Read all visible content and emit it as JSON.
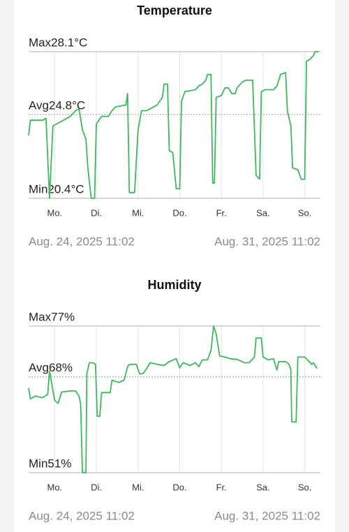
{
  "chart_data": [
    {
      "type": "line",
      "title": "Temperature",
      "color": "#3cb95a",
      "xlim": [
        0,
        168
      ],
      "ylim": [
        20.4,
        28.1
      ],
      "xticks": [
        {
          "value": 15,
          "label": "Mo."
        },
        {
          "value": 39,
          "label": "Di."
        },
        {
          "value": 63,
          "label": "Mi."
        },
        {
          "value": 87,
          "label": "Do."
        },
        {
          "value": 111,
          "label": "Fr."
        },
        {
          "value": 135,
          "label": "Sa."
        },
        {
          "value": 159,
          "label": "So."
        }
      ],
      "reference_lines": [
        {
          "value": 28.1,
          "label": "Max28.1°C"
        },
        {
          "value": 24.8,
          "label": "Avg24.8°C"
        },
        {
          "value": 20.4,
          "label": "Min20.4°C"
        }
      ],
      "start_label": "Aug. 24, 2025 11:02",
      "end_label": "Aug. 31, 2025 11:02",
      "x": [
        0,
        1,
        8,
        10,
        12,
        14,
        16,
        20,
        24,
        27,
        29,
        31,
        33,
        34,
        36,
        38,
        39,
        42,
        46,
        48,
        50,
        56,
        57,
        58,
        61,
        63,
        65,
        68,
        72,
        74,
        77,
        78,
        80,
        81,
        83,
        85,
        87,
        88,
        90,
        96,
        98,
        100,
        102,
        103,
        105,
        106,
        107,
        108,
        111,
        113,
        115,
        117,
        119,
        120,
        123,
        125,
        129,
        131,
        133,
        134,
        136,
        141,
        143,
        145,
        148,
        149,
        151,
        152,
        155,
        157,
        159,
        160,
        162,
        164,
        165,
        167
      ],
      "values": [
        23.7,
        24.5,
        24.5,
        24.6,
        20.4,
        24.2,
        24.3,
        24.5,
        24.7,
        25.0,
        25.1,
        24.0,
        23.5,
        22.1,
        20.4,
        20.4,
        24.3,
        24.7,
        24.7,
        25.0,
        25.2,
        25.3,
        25.9,
        20.7,
        20.7,
        24.0,
        25.0,
        25.0,
        25.2,
        25.3,
        25.7,
        26.4,
        26.4,
        22.9,
        22.8,
        20.9,
        20.9,
        25.5,
        26.0,
        26.1,
        26.3,
        26.4,
        26.6,
        26.9,
        26.9,
        21.2,
        21.2,
        25.7,
        25.8,
        26.2,
        26.2,
        25.9,
        25.9,
        26.2,
        26.5,
        26.6,
        26.6,
        21.6,
        21.4,
        26.0,
        26.1,
        26.1,
        26.3,
        26.9,
        27.0,
        25.0,
        24.2,
        22.0,
        21.9,
        21.4,
        21.4,
        27.6,
        27.7,
        27.9,
        28.1,
        28.1
      ]
    },
    {
      "type": "line",
      "title": "Humidity",
      "color": "#3cb95a",
      "xlim": [
        0,
        168
      ],
      "ylim": [
        51,
        77
      ],
      "xticks": [
        {
          "value": 15,
          "label": "Mo."
        },
        {
          "value": 39,
          "label": "Di."
        },
        {
          "value": 63,
          "label": "Mi."
        },
        {
          "value": 87,
          "label": "Do."
        },
        {
          "value": 111,
          "label": "Fr."
        },
        {
          "value": 135,
          "label": "Sa."
        },
        {
          "value": 159,
          "label": "So."
        }
      ],
      "reference_lines": [
        {
          "value": 77,
          "label": "Max77%"
        },
        {
          "value": 68,
          "label": "Avg68%"
        },
        {
          "value": 51,
          "label": "Min51%"
        }
      ],
      "start_label": "Aug. 24, 2025 11:02",
      "end_label": "Aug. 31, 2025 11:02",
      "x": [
        0,
        1,
        4,
        8,
        11,
        12,
        13,
        15,
        17,
        19,
        24,
        27,
        29,
        30,
        31,
        33,
        33.5,
        35,
        37,
        38.5,
        39.5,
        41,
        42,
        47,
        48,
        52,
        55,
        57,
        58,
        62,
        64,
        66,
        68,
        70,
        74,
        78,
        81,
        85,
        87,
        89,
        93,
        96,
        98,
        100,
        103,
        105,
        106.5,
        108,
        110,
        113,
        116,
        120,
        123,
        124,
        127,
        130,
        131,
        134,
        135,
        138,
        141,
        143,
        144,
        148,
        150,
        151,
        151.5,
        154,
        155,
        159,
        160,
        163,
        164,
        166
      ],
      "values": [
        66.0,
        64.1,
        64.6,
        64.3,
        64.9,
        69.0,
        67.4,
        63.8,
        63.3,
        65.3,
        65.5,
        65.5,
        64.6,
        63.1,
        51,
        51,
        68.6,
        70.5,
        70.5,
        70.2,
        61.0,
        61.0,
        65.2,
        65.2,
        67.4,
        67.0,
        67.4,
        69.8,
        70.2,
        70.2,
        68.5,
        68.6,
        69.5,
        70.5,
        70.2,
        70.0,
        70.7,
        71.2,
        69.6,
        70.5,
        70.0,
        70.5,
        69.8,
        71.0,
        71.0,
        72.7,
        77,
        75.6,
        71.7,
        71.5,
        71.2,
        71.1,
        70.7,
        70.5,
        70.5,
        71.5,
        74.9,
        74.9,
        71.5,
        71.0,
        71.2,
        69.2,
        70.7,
        70.7,
        70.2,
        69.2,
        60.0,
        60.0,
        71.5,
        71.5,
        71.2,
        70.2,
        70.5,
        69.5
      ]
    }
  ]
}
